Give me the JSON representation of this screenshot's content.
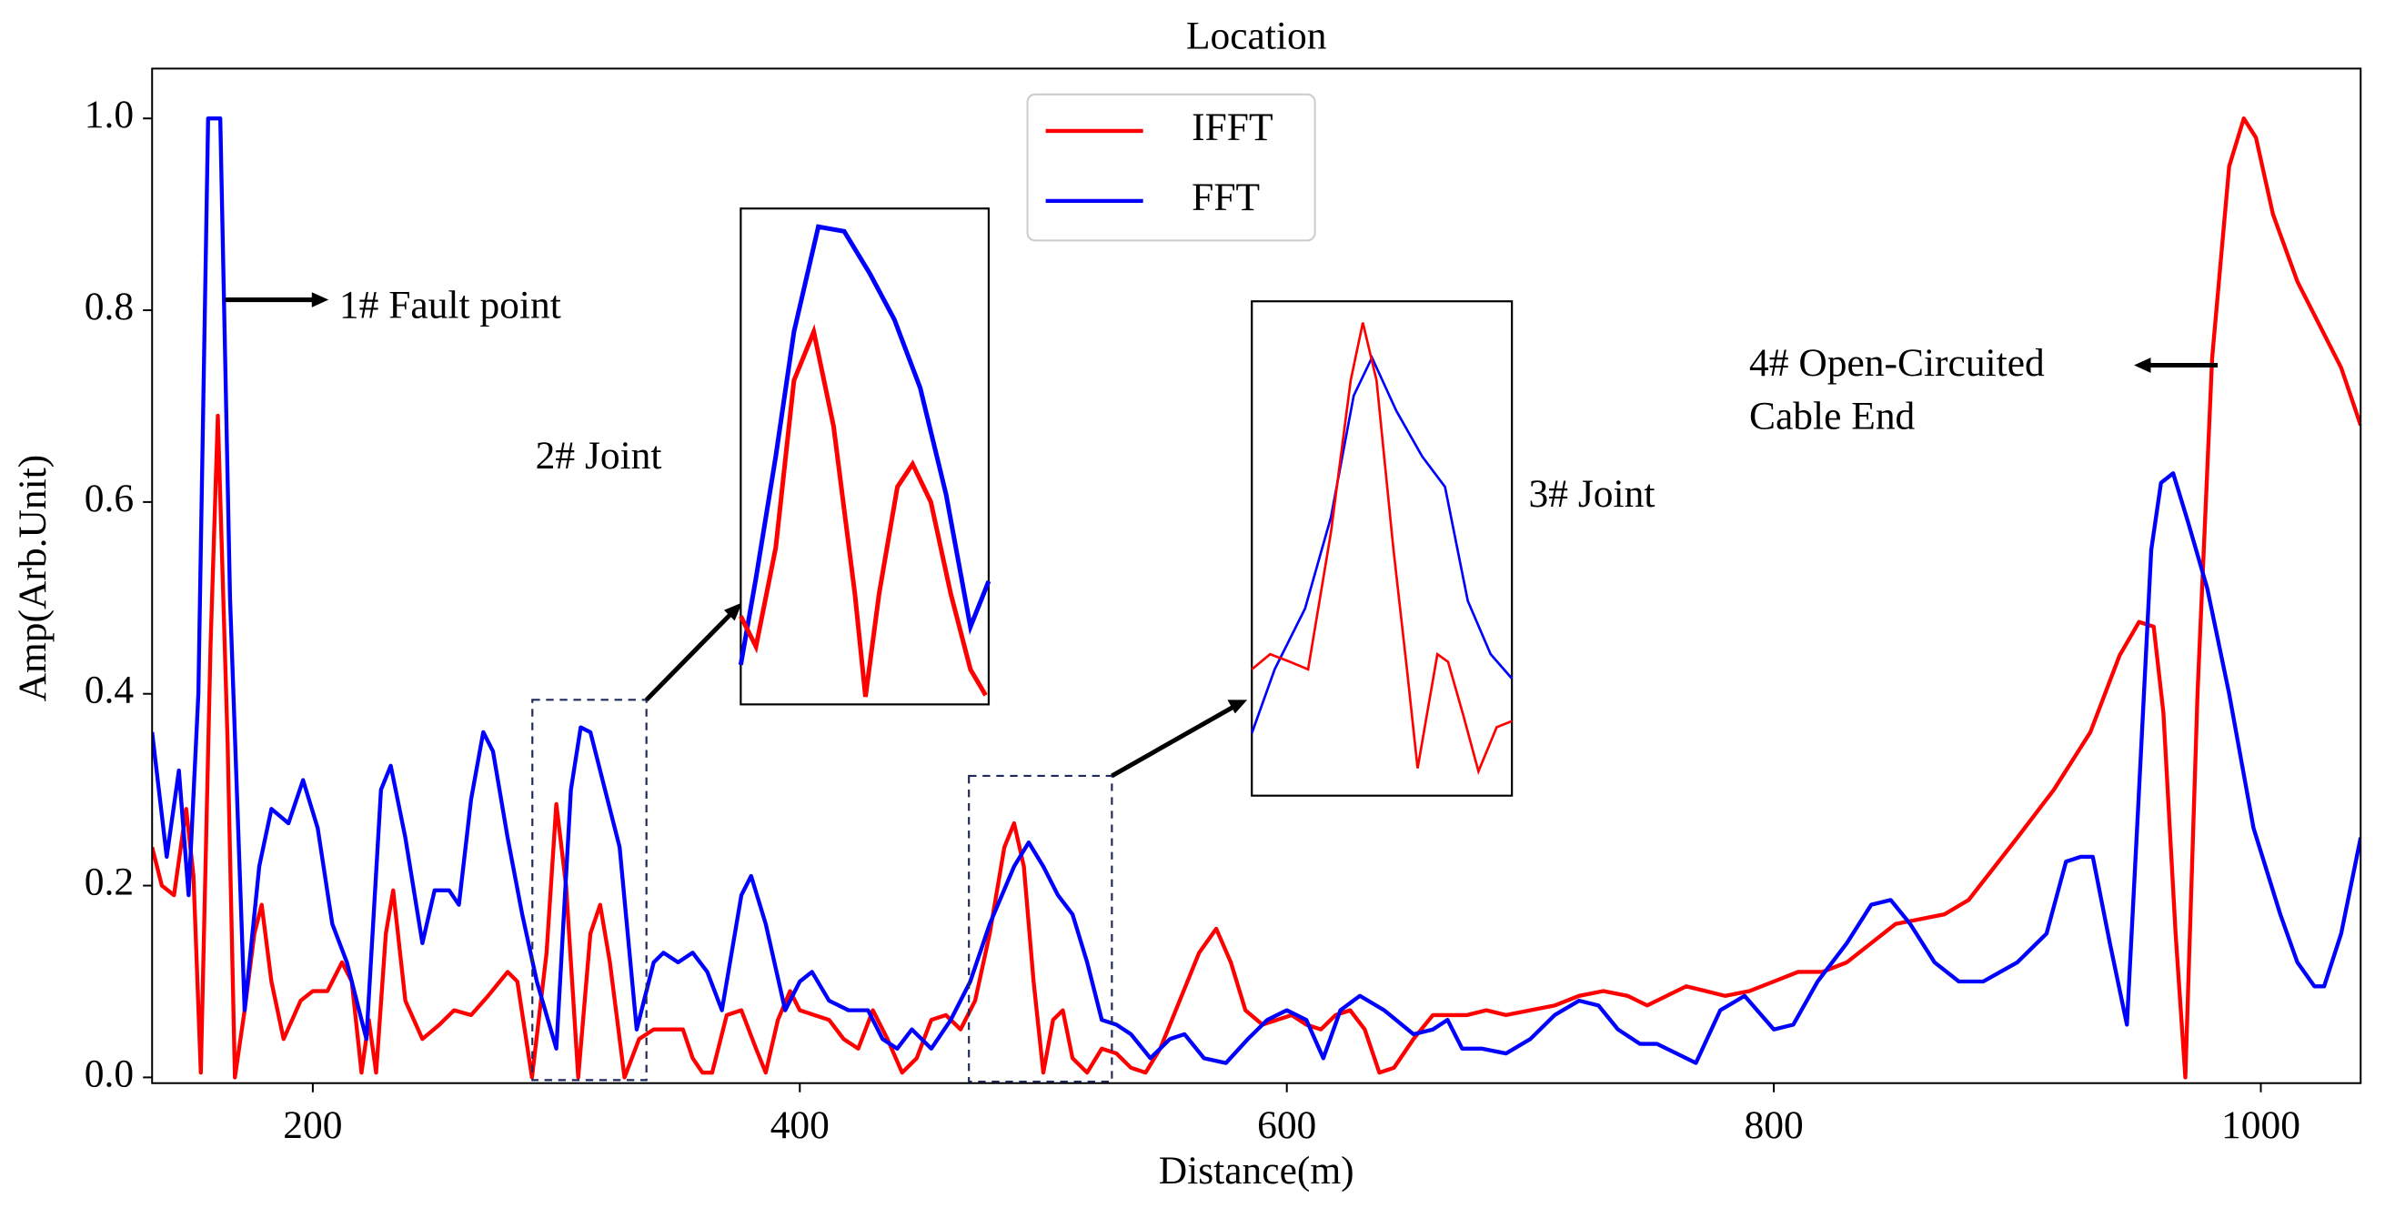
{
  "chart_data": {
    "type": "line",
    "title": "Location",
    "xlabel": "Distance(m)",
    "ylabel": "Amp(Arb.Unit)",
    "xlim": [
      134,
      1041
    ],
    "ylim": [
      -0.006,
      1.052
    ],
    "xticks": [
      200,
      400,
      600,
      800,
      1000
    ],
    "yticks": [
      {
        "value": 0,
        "label": "0.0"
      },
      {
        "value": 0.2,
        "label": "0.2"
      },
      {
        "value": 0.4,
        "label": "0.4"
      },
      {
        "value": 0.6,
        "label": "0.6"
      },
      {
        "value": 0.8,
        "label": "0.8"
      },
      {
        "value": 1,
        "label": "1.0"
      }
    ],
    "legend": "upper center",
    "annotations": [
      "1# Fault point",
      "2# Joint",
      "3# Joint",
      "4# Open-Circuited",
      "Cable End"
    ],
    "series": [
      {
        "name": "IFFT",
        "color": "#ff0000",
        "x": [
          134,
          138,
          143,
          148,
          151,
          154,
          158,
          161,
          165,
          168,
          172,
          176,
          179,
          183,
          188,
          195,
          200,
          206,
          212,
          216,
          220,
          223,
          226,
          230,
          233,
          238,
          245,
          252,
          258,
          265,
          272,
          280,
          284,
          290,
          296,
          300,
          304,
          309,
          314,
          318,
          322,
          328,
          334,
          340,
          346,
          352,
          356,
          360,
          364,
          370,
          376,
          382,
          386,
          391,
          396,
          400,
          406,
          412,
          418,
          424,
          430,
          436,
          442,
          448,
          454,
          460,
          466,
          472,
          478,
          484,
          488,
          492,
          496,
          500,
          504,
          508,
          512,
          518,
          524,
          530,
          536,
          542,
          548,
          556,
          564,
          571,
          577,
          583,
          590,
          596,
          602,
          608,
          614,
          620,
          626,
          632,
          638,
          644,
          652,
          660,
          666,
          674,
          682,
          690,
          700,
          710,
          720,
          730,
          740,
          748,
          756,
          764,
          772,
          780,
          790,
          800,
          810,
          820,
          830,
          840,
          850,
          860,
          870,
          880,
          900,
          915,
          930,
          942,
          950,
          956,
          960,
          965,
          969,
          974,
          980,
          987,
          993,
          998,
          1005,
          1015,
          1025,
          1033,
          1041
        ],
        "values": [
          0.24,
          0.2,
          0.19,
          0.28,
          0.21,
          0.005,
          0.45,
          0.69,
          0.35,
          0.0,
          0.07,
          0.15,
          0.18,
          0.1,
          0.04,
          0.08,
          0.09,
          0.09,
          0.12,
          0.1,
          0.005,
          0.06,
          0.005,
          0.15,
          0.195,
          0.08,
          0.04,
          0.055,
          0.07,
          0.065,
          0.085,
          0.11,
          0.1,
          0.0,
          0.13,
          0.285,
          0.2,
          0.0,
          0.15,
          0.18,
          0.12,
          0.0,
          0.04,
          0.05,
          0.05,
          0.05,
          0.02,
          0.005,
          0.005,
          0.065,
          0.07,
          0.03,
          0.005,
          0.06,
          0.09,
          0.07,
          0.065,
          0.06,
          0.04,
          0.03,
          0.07,
          0.04,
          0.005,
          0.02,
          0.06,
          0.065,
          0.05,
          0.08,
          0.15,
          0.24,
          0.265,
          0.22,
          0.1,
          0.005,
          0.06,
          0.07,
          0.02,
          0.005,
          0.03,
          0.025,
          0.01,
          0.005,
          0.03,
          0.08,
          0.13,
          0.155,
          0.12,
          0.07,
          0.055,
          0.06,
          0.065,
          0.055,
          0.05,
          0.065,
          0.07,
          0.05,
          0.005,
          0.01,
          0.04,
          0.065,
          0.065,
          0.065,
          0.07,
          0.065,
          0.07,
          0.075,
          0.085,
          0.09,
          0.085,
          0.075,
          0.085,
          0.095,
          0.09,
          0.085,
          0.09,
          0.1,
          0.11,
          0.11,
          0.12,
          0.14,
          0.16,
          0.165,
          0.17,
          0.185,
          0.25,
          0.3,
          0.36,
          0.44,
          0.475,
          0.47,
          0.38,
          0.15,
          0.0,
          0.4,
          0.75,
          0.95,
          1.0,
          0.98,
          0.9,
          0.83,
          0.78,
          0.74,
          0.68
        ]
      },
      {
        "name": "FFT",
        "color": "#0000ff",
        "x": [
          134,
          140,
          145,
          149,
          153,
          157,
          162,
          166,
          172,
          178,
          183,
          190,
          196,
          202,
          208,
          214,
          222,
          228,
          232,
          238,
          245,
          250,
          256,
          260,
          265,
          270,
          274,
          280,
          286,
          292,
          300,
          306,
          310,
          314,
          320,
          326,
          333,
          340,
          344,
          350,
          356,
          362,
          368,
          376,
          380,
          386,
          394,
          400,
          405,
          412,
          420,
          428,
          434,
          440,
          446,
          454,
          462,
          470,
          478,
          488,
          494,
          500,
          506,
          512,
          518,
          524,
          530,
          536,
          544,
          552,
          558,
          566,
          575,
          584,
          592,
          600,
          608,
          615,
          622,
          630,
          640,
          652,
          660,
          666,
          672,
          680,
          690,
          700,
          710,
          720,
          728,
          736,
          745,
          752,
          760,
          768,
          778,
          788,
          800,
          808,
          818,
          830,
          840,
          848,
          856,
          866,
          876,
          886,
          900,
          912,
          920,
          926,
          931,
          938,
          945,
          950,
          955,
          959,
          964,
          970,
          978,
          987,
          997,
          1008,
          1015,
          1022,
          1026,
          1033,
          1041
        ],
        "values": [
          0.36,
          0.23,
          0.32,
          0.19,
          0.4,
          1.0,
          1.0,
          0.5,
          0.07,
          0.22,
          0.28,
          0.265,
          0.31,
          0.26,
          0.16,
          0.12,
          0.04,
          0.3,
          0.325,
          0.25,
          0.14,
          0.195,
          0.195,
          0.18,
          0.29,
          0.36,
          0.34,
          0.25,
          0.17,
          0.1,
          0.03,
          0.3,
          0.365,
          0.36,
          0.3,
          0.24,
          0.05,
          0.12,
          0.13,
          0.12,
          0.13,
          0.11,
          0.07,
          0.19,
          0.21,
          0.16,
          0.07,
          0.1,
          0.11,
          0.08,
          0.07,
          0.07,
          0.04,
          0.03,
          0.05,
          0.03,
          0.06,
          0.1,
          0.16,
          0.22,
          0.245,
          0.22,
          0.19,
          0.17,
          0.12,
          0.06,
          0.055,
          0.045,
          0.02,
          0.04,
          0.045,
          0.02,
          0.015,
          0.04,
          0.06,
          0.07,
          0.06,
          0.02,
          0.07,
          0.085,
          0.07,
          0.045,
          0.05,
          0.06,
          0.03,
          0.03,
          0.025,
          0.04,
          0.065,
          0.08,
          0.075,
          0.05,
          0.035,
          0.035,
          0.025,
          0.015,
          0.07,
          0.085,
          0.05,
          0.055,
          0.1,
          0.14,
          0.18,
          0.185,
          0.16,
          0.12,
          0.1,
          0.1,
          0.12,
          0.15,
          0.225,
          0.23,
          0.23,
          0.14,
          0.055,
          0.3,
          0.55,
          0.62,
          0.63,
          0.58,
          0.51,
          0.4,
          0.26,
          0.17,
          0.12,
          0.095,
          0.095,
          0.15,
          0.25
        ]
      }
    ]
  }
}
